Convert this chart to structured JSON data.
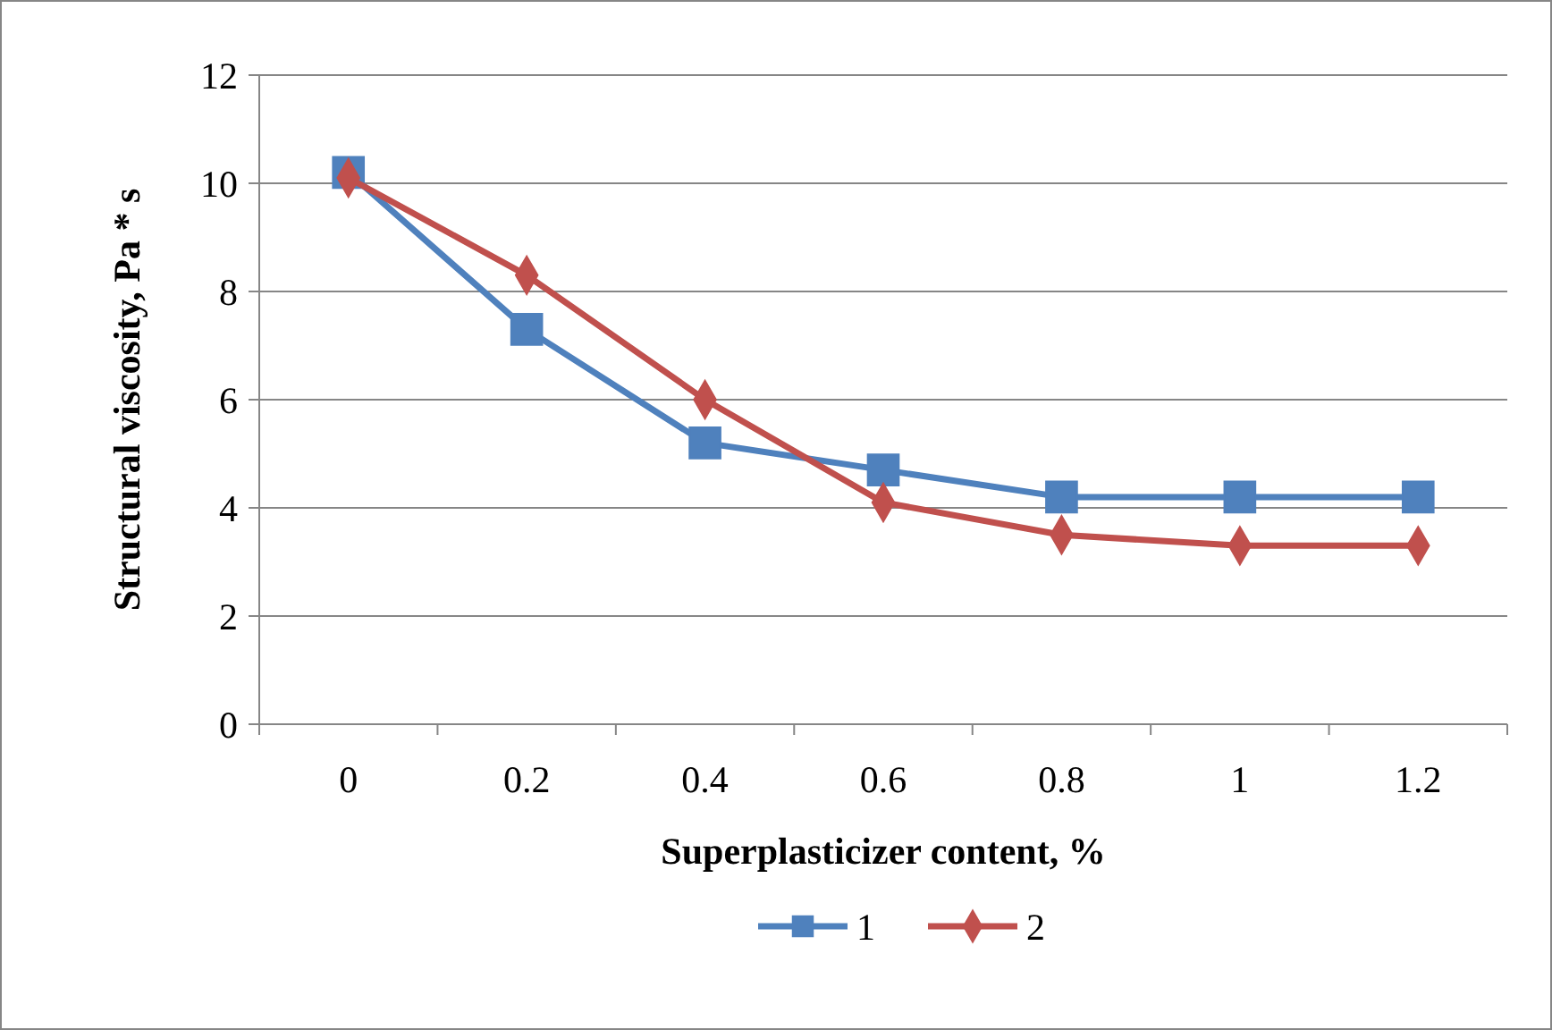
{
  "chart_data": {
    "type": "line",
    "xlabel": "Superplasticizer content, %",
    "ylabel": "Structural viscosity, Pa * s",
    "categories": [
      "0",
      "0.2",
      "0.4",
      "0.6",
      "0.8",
      "1",
      "1.2"
    ],
    "series": [
      {
        "name": "1",
        "color": "#4f81bd",
        "marker": "square",
        "values": [
          10.2,
          7.3,
          5.2,
          4.7,
          4.2,
          4.2,
          4.2
        ]
      },
      {
        "name": "2",
        "color": "#c0504d",
        "marker": "diamond",
        "values": [
          10.1,
          8.3,
          6.0,
          4.1,
          3.5,
          3.3,
          3.3
        ]
      }
    ],
    "ylim": [
      0,
      12
    ],
    "yticks": [
      0,
      2,
      4,
      6,
      8,
      10,
      12
    ],
    "grid": "y",
    "legend": "bottom"
  }
}
